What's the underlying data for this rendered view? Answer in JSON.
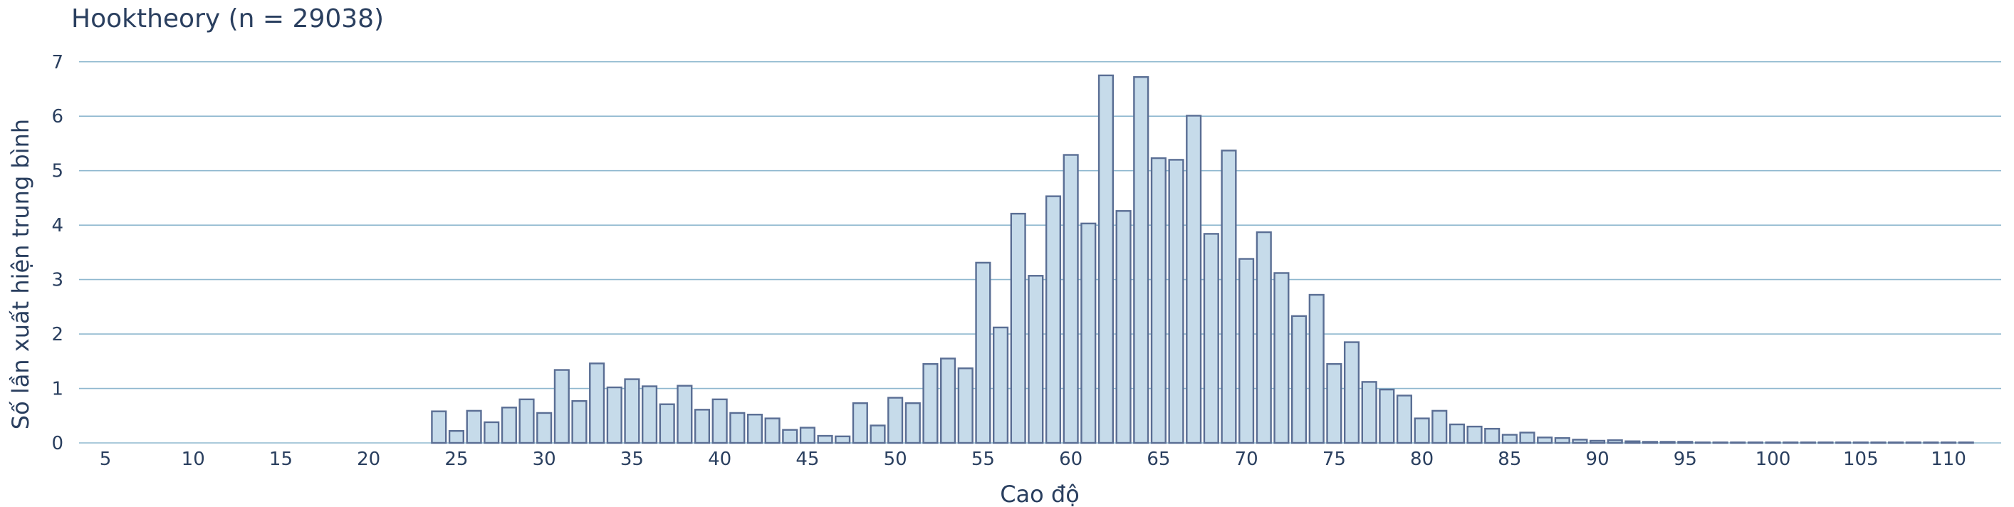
{
  "chart_data": {
    "type": "bar",
    "title": "Hooktheory (n = 29038)",
    "xlabel": "Cao độ",
    "ylabel": "Số lần xuất hiện trung bình",
    "xlim": [
      3.5,
      113
    ],
    "ylim": [
      0,
      7.35
    ],
    "xticks": [
      5,
      10,
      15,
      20,
      25,
      30,
      35,
      40,
      45,
      50,
      55,
      60,
      65,
      70,
      75,
      80,
      85,
      90,
      95,
      100,
      105,
      110
    ],
    "yticks": [
      0,
      1,
      2,
      3,
      4,
      5,
      6,
      7
    ],
    "grid": true,
    "bar_fill": "#c6dbea",
    "bar_edge": "#5a6e94",
    "grid_color": "#8fb8cf",
    "text_color": "#2a3f5f",
    "x": [
      4,
      5,
      6,
      7,
      8,
      9,
      10,
      11,
      12,
      13,
      14,
      15,
      16,
      17,
      18,
      19,
      20,
      21,
      22,
      23,
      24,
      25,
      26,
      27,
      28,
      29,
      30,
      31,
      32,
      33,
      34,
      35,
      36,
      37,
      38,
      39,
      40,
      41,
      42,
      43,
      44,
      45,
      46,
      47,
      48,
      49,
      50,
      51,
      52,
      53,
      54,
      55,
      56,
      57,
      58,
      59,
      60,
      61,
      62,
      63,
      64,
      65,
      66,
      67,
      68,
      69,
      70,
      71,
      72,
      73,
      74,
      75,
      76,
      77,
      78,
      79,
      80,
      81,
      82,
      83,
      84,
      85,
      86,
      87,
      88,
      89,
      90,
      91,
      92,
      93,
      94,
      95,
      96,
      97,
      98,
      99,
      100,
      101,
      102,
      103,
      104,
      105,
      106,
      107,
      108,
      109,
      110,
      111,
      112
    ],
    "values": [
      0,
      0,
      0,
      0,
      0,
      0,
      0,
      0,
      0,
      0,
      0,
      0,
      0,
      0,
      0,
      0,
      0,
      0,
      0,
      0,
      0.58,
      0.22,
      0.59,
      0.38,
      0.65,
      0.8,
      0.55,
      1.34,
      0.77,
      1.46,
      1.02,
      1.17,
      1.04,
      0.71,
      1.05,
      0.61,
      0.8,
      0.55,
      0.52,
      0.45,
      0.24,
      0.28,
      0.13,
      0.12,
      0.73,
      0.32,
      0.83,
      0.73,
      1.45,
      1.55,
      1.37,
      3.31,
      2.12,
      4.21,
      3.07,
      4.53,
      5.29,
      4.03,
      6.75,
      4.26,
      6.72,
      5.23,
      5.2,
      6.01,
      3.84,
      5.37,
      3.38,
      3.87,
      3.12,
      2.33,
      2.72,
      1.45,
      1.85,
      1.12,
      0.98,
      0.87,
      0.45,
      0.59,
      0.34,
      0.3,
      0.26,
      0.15,
      0.19,
      0.1,
      0.09,
      0.06,
      0.04,
      0.05,
      0.03,
      0.02,
      0.02,
      0.02,
      0.01,
      0.01,
      0.01,
      0.01,
      0.01,
      0.01,
      0.01,
      0.01,
      0.01,
      0.01,
      0.01,
      0.01,
      0.01,
      0.01,
      0.01,
      0.01,
      0
    ]
  }
}
